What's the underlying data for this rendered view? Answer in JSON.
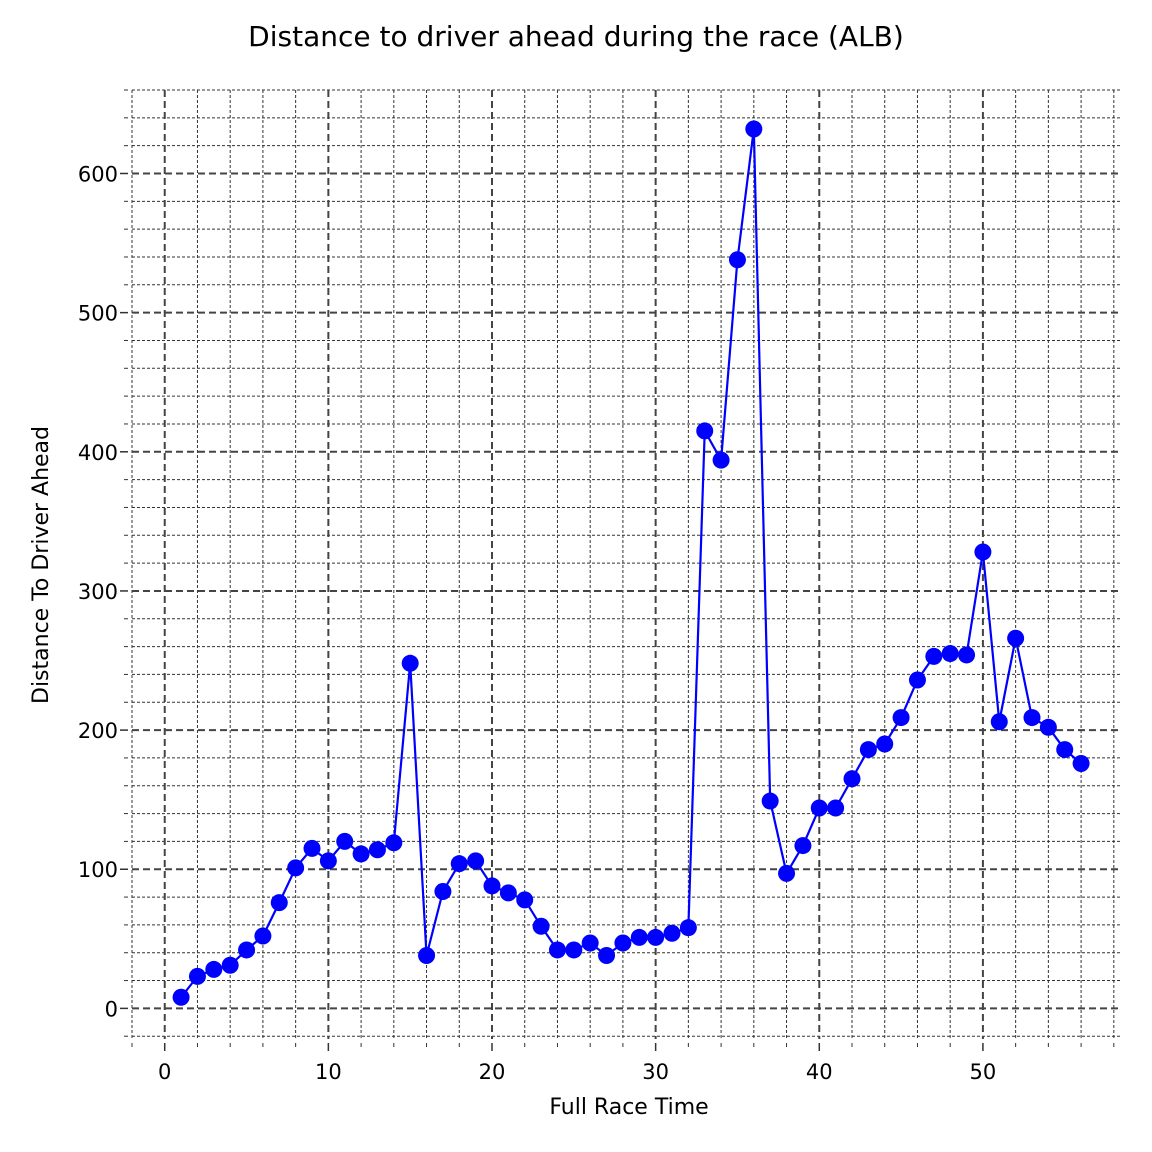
{
  "chart_data": {
    "type": "line",
    "title": "Distance to driver ahead during the race (ALB)",
    "xlabel": "Full Race Time",
    "ylabel": "Distance To Driver Ahead",
    "xlim": [
      -2,
      58.5
    ],
    "ylim": [
      -22,
      660
    ],
    "x_ticks": [
      0,
      10,
      20,
      30,
      40,
      50
    ],
    "y_ticks": [
      0,
      100,
      200,
      300,
      400,
      500,
      600
    ],
    "x_minor_step": 2,
    "y_minor_step": 20,
    "grid": true,
    "marker": "circle",
    "series": [
      {
        "color": "#0000ff",
        "x": [
          1,
          2,
          3,
          4,
          5,
          6,
          7,
          8,
          9,
          10,
          11,
          12,
          13,
          14,
          15,
          16,
          17,
          18,
          19,
          20,
          21,
          22,
          23,
          24,
          25,
          26,
          27,
          28,
          29,
          30,
          31,
          32,
          33,
          34,
          35,
          36,
          37,
          38,
          39,
          40,
          41,
          42,
          43,
          44,
          45,
          46,
          47,
          48,
          49,
          50,
          51,
          52,
          53,
          54,
          55,
          56
        ],
        "y": [
          8,
          23,
          28,
          31,
          42,
          52,
          76,
          101,
          115,
          106,
          120,
          111,
          114,
          119,
          248,
          38,
          84,
          104,
          106,
          88,
          83,
          78,
          59,
          42,
          42,
          47,
          38,
          47,
          51,
          51,
          54,
          58,
          415,
          394,
          538,
          632,
          149,
          97,
          117,
          144,
          144,
          165,
          186,
          190,
          209,
          236,
          253,
          255,
          254,
          328,
          206,
          266,
          209,
          202,
          186,
          176
        ]
      }
    ]
  }
}
